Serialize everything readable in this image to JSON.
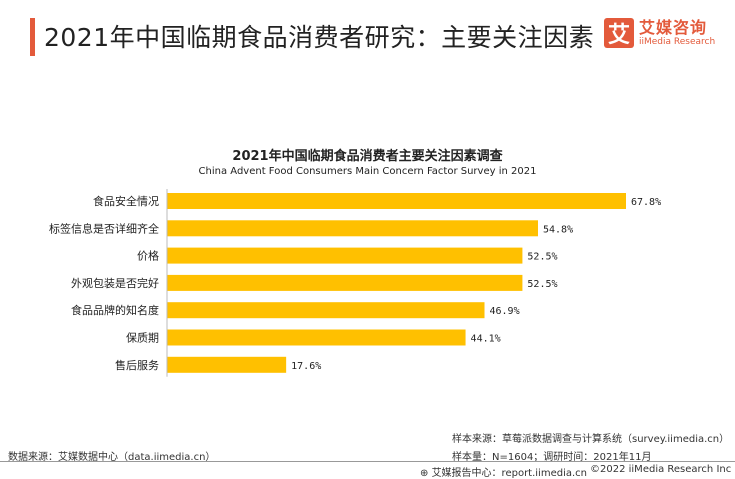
{
  "header": {
    "title": "2021年中国临期食品消费者研究：主要关注因素",
    "logo_mark": "艾",
    "logo_cn": "艾媒咨询",
    "logo_en": "iiMedia Research"
  },
  "chart_data": {
    "type": "bar",
    "orientation": "horizontal",
    "title": "2021年中国临期食品消费者主要关注因素调查",
    "subtitle": "China Advent Food Consumers Main Concern Factor Survey in 2021",
    "categories": [
      "食品安全情况",
      "标签信息是否详细齐全",
      "价格",
      "外观包装是否完好",
      "食品品牌的知名度",
      "保质期",
      "售后服务"
    ],
    "values": [
      67.8,
      54.8,
      52.5,
      52.5,
      46.9,
      44.1,
      17.6
    ],
    "labels": [
      "67.8%",
      "54.8%",
      "52.5%",
      "52.5%",
      "46.9%",
      "44.1%",
      "17.6%"
    ],
    "unit": "%",
    "xlim": [
      0,
      70
    ],
    "bar_color": "#ffc000",
    "grid": false
  },
  "footer": {
    "data_source": "数据来源：艾媒数据中心（data.iimedia.cn）",
    "sample_source": "样本来源：草莓派数据调查与计算系统（survey.iimedia.cn）",
    "sample_info": "样本量：N=1604；调研时间：2021年11月",
    "report_center": "艾媒报告中心：report.iimedia.cn",
    "copyright": "©2022  iiMedia Research  Inc"
  }
}
